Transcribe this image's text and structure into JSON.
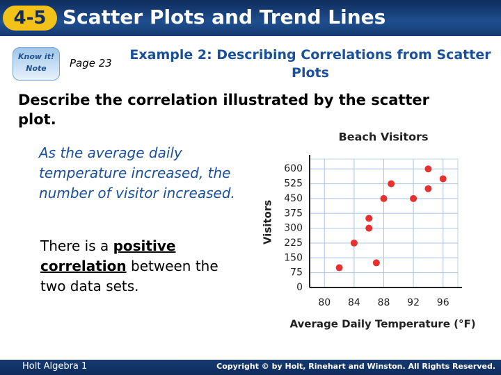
{
  "header": {
    "number": "4-5",
    "title": "Scatter Plots and Trend Lines"
  },
  "icon": {
    "line1": "Know it!",
    "line2": "Note"
  },
  "page_ref": "Page 23",
  "example_title": "Example 2: Describing Correlations from Scatter Plots",
  "prompt": "Describe the correlation illustrated by the scatter plot.",
  "answer1": "As the average daily temperature increased, the number of visitor increased.",
  "answer2": {
    "before": "There is a ",
    "term": "positive correlation",
    "after": " between the two data sets."
  },
  "footer": {
    "left": "Holt Algebra 1",
    "right": "Copyright © by Holt, Rinehart and Winston. All Rights Reserved."
  },
  "chart_data": {
    "type": "scatter",
    "title": "Beach Visitors",
    "x_label": "Average Daily Temperature (°F)",
    "y_label": "Visitors",
    "x": [
      82,
      84,
      86,
      86,
      87,
      88,
      89,
      92,
      94,
      94,
      96
    ],
    "values": [
      100,
      225,
      350,
      300,
      125,
      450,
      525,
      450,
      500,
      600,
      550
    ],
    "color": "#e5312f",
    "xlim": [
      78,
      98
    ],
    "xticks": [
      80,
      84,
      88,
      92,
      96
    ],
    "ylim": [
      0,
      650
    ],
    "yticks": [
      0,
      75,
      150,
      225,
      300,
      375,
      450,
      525,
      600
    ],
    "grid": true
  }
}
